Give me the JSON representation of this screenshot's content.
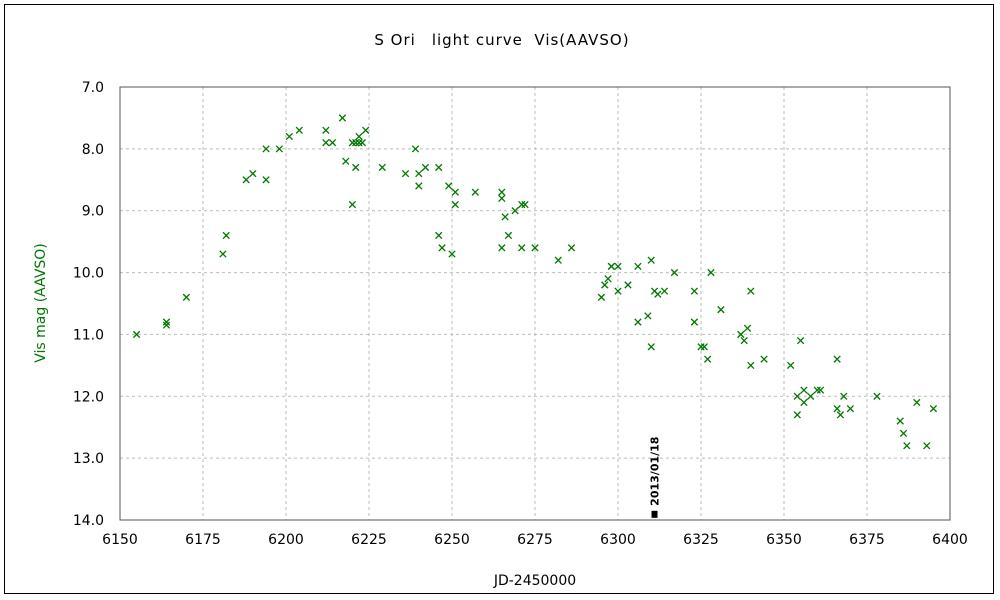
{
  "chart_data": {
    "type": "scatter",
    "title": "S Ori　light curve  Vis(AAVSO)",
    "xlabel": "JD-2450000",
    "ylabel": "Vis mag (AAVSO)",
    "xlim": [
      6150,
      6400
    ],
    "ylim": [
      7.0,
      14.0
    ],
    "y_inverted": true,
    "x_ticks": [
      6150,
      6175,
      6200,
      6225,
      6250,
      6275,
      6300,
      6325,
      6350,
      6375,
      6400
    ],
    "x_tick_labels": [
      "6150",
      "6175",
      "6200",
      "6225",
      "6250",
      "6275",
      "6300",
      "6325",
      "6350",
      "6375",
      "6400"
    ],
    "y_ticks": [
      7.0,
      8.0,
      9.0,
      10.0,
      11.0,
      12.0,
      13.0,
      14.0
    ],
    "y_tick_labels": [
      "7.0",
      "8.0",
      "9.0",
      "10.0",
      "11.0",
      "12.0",
      "13.0",
      "14.0"
    ],
    "grid": true,
    "marker": "x",
    "series_color": "#007700",
    "ylabel_color": "#007700",
    "grid_color": "#bbbbbb",
    "annotation": {
      "label": "2013/01/18",
      "x": 6311,
      "y": 13.9
    },
    "series": [
      {
        "x": [
          6155,
          6164,
          6164,
          6170,
          6181,
          6182,
          6188,
          6190,
          6194,
          6194,
          6198,
          6201,
          6204,
          6212,
          6212,
          6214,
          6217,
          6218,
          6220,
          6220,
          6221,
          6221,
          6222,
          6222,
          6223,
          6224,
          6229,
          6236,
          6239,
          6240,
          6240,
          6242,
          6246,
          6246,
          6247,
          6249,
          6250,
          6251,
          6251,
          6257,
          6265,
          6265,
          6265,
          6266,
          6267,
          6269,
          6271,
          6271,
          6272,
          6275,
          6282,
          6286,
          6295,
          6296,
          6297,
          6298,
          6298,
          6300,
          6300,
          6303,
          6306,
          6306,
          6309,
          6310,
          6310,
          6311,
          6312,
          6314,
          6317,
          6323,
          6323,
          6325,
          6326,
          6327,
          6328,
          6331,
          6337,
          6338,
          6339,
          6340,
          6340,
          6344,
          6352,
          6354,
          6354,
          6355,
          6356,
          6356,
          6358,
          6360,
          6361,
          6366,
          6366,
          6367,
          6368,
          6370,
          6378,
          6385,
          6386,
          6387,
          6390,
          6393,
          6395
        ],
        "y": [
          11.0,
          10.8,
          10.85,
          10.4,
          9.7,
          9.4,
          8.5,
          8.4,
          8.0,
          8.5,
          8.0,
          7.8,
          7.7,
          7.7,
          7.9,
          7.9,
          7.5,
          8.2,
          8.9,
          7.9,
          8.3,
          7.9,
          7.8,
          7.9,
          7.9,
          7.7,
          8.3,
          8.4,
          8.0,
          8.4,
          8.6,
          8.3,
          8.3,
          9.4,
          9.6,
          8.6,
          9.7,
          8.9,
          8.7,
          8.7,
          8.8,
          8.7,
          9.6,
          9.1,
          9.4,
          9.0,
          8.9,
          9.6,
          8.9,
          9.6,
          9.8,
          9.6,
          10.4,
          10.2,
          10.1,
          9.9,
          9.9,
          9.9,
          10.3,
          10.2,
          9.9,
          10.8,
          10.7,
          11.2,
          9.8,
          10.3,
          10.35,
          10.3,
          10.0,
          10.3,
          10.8,
          11.2,
          11.2,
          11.4,
          10.0,
          10.6,
          11.0,
          11.1,
          10.9,
          11.5,
          10.3,
          11.4,
          11.5,
          12.0,
          12.3,
          11.1,
          12.1,
          11.9,
          12.0,
          11.9,
          11.9,
          12.2,
          11.4,
          12.3,
          12.0,
          12.2,
          12.0,
          12.4,
          12.6,
          12.8,
          12.1,
          12.8,
          12.2
        ]
      }
    ]
  }
}
